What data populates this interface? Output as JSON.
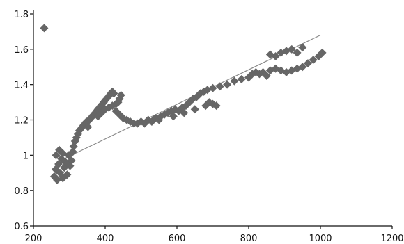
{
  "chart_data": {
    "type": "scatter",
    "title": "",
    "xlabel": "",
    "ylabel": "",
    "xlim": [
      200,
      1200
    ],
    "ylim": [
      0.6,
      1.8
    ],
    "grid": false,
    "legend": "none",
    "x_ticks": [
      200,
      400,
      600,
      800,
      1000,
      1200
    ],
    "x_tick_labels": [
      "200",
      "400",
      "600",
      "800",
      "1000",
      "1200"
    ],
    "y_ticks": [
      0.6,
      0.8,
      1.0,
      1.2,
      1.4,
      1.6,
      1.8
    ],
    "y_tick_labels": [
      "0.6",
      "0.8",
      "1",
      "1.2",
      "1.4",
      "1.6",
      "1.8"
    ],
    "marker_color": "#666666",
    "trendline_color": "#888888",
    "series": [
      {
        "marker": "diamond",
        "points": [
          [
            230,
            1.72
          ],
          [
            258,
            0.88
          ],
          [
            262,
            0.92
          ],
          [
            266,
            0.86
          ],
          [
            270,
            0.95
          ],
          [
            274,
            0.9
          ],
          [
            278,
            0.98
          ],
          [
            282,
            0.87
          ],
          [
            286,
            0.93
          ],
          [
            290,
            0.96
          ],
          [
            294,
            0.89
          ],
          [
            298,
            1.0
          ],
          [
            302,
            0.94
          ],
          [
            306,
            0.97
          ],
          [
            310,
            1.02
          ],
          [
            263,
            1.0
          ],
          [
            272,
            1.03
          ],
          [
            282,
            1.01
          ],
          [
            312,
            1.05
          ],
          [
            316,
            1.08
          ],
          [
            320,
            1.1
          ],
          [
            324,
            1.12
          ],
          [
            328,
            1.14
          ],
          [
            332,
            1.15
          ],
          [
            336,
            1.16
          ],
          [
            340,
            1.17
          ],
          [
            344,
            1.18
          ],
          [
            348,
            1.19
          ],
          [
            352,
            1.16
          ],
          [
            356,
            1.2
          ],
          [
            360,
            1.21
          ],
          [
            364,
            1.22
          ],
          [
            368,
            1.23
          ],
          [
            372,
            1.24
          ],
          [
            376,
            1.25
          ],
          [
            380,
            1.26
          ],
          [
            384,
            1.27
          ],
          [
            388,
            1.28
          ],
          [
            392,
            1.29
          ],
          [
            396,
            1.3
          ],
          [
            400,
            1.31
          ],
          [
            404,
            1.32
          ],
          [
            408,
            1.33
          ],
          [
            412,
            1.34
          ],
          [
            416,
            1.35
          ],
          [
            420,
            1.36
          ],
          [
            424,
            1.35
          ],
          [
            380,
            1.22
          ],
          [
            390,
            1.24
          ],
          [
            400,
            1.26
          ],
          [
            410,
            1.27
          ],
          [
            420,
            1.28
          ],
          [
            430,
            1.29
          ],
          [
            436,
            1.3
          ],
          [
            440,
            1.32
          ],
          [
            444,
            1.34
          ],
          [
            430,
            1.25
          ],
          [
            440,
            1.23
          ],
          [
            450,
            1.21
          ],
          [
            460,
            1.2
          ],
          [
            470,
            1.19
          ],
          [
            480,
            1.18
          ],
          [
            490,
            1.18
          ],
          [
            500,
            1.19
          ],
          [
            510,
            1.18
          ],
          [
            520,
            1.2
          ],
          [
            530,
            1.19
          ],
          [
            540,
            1.21
          ],
          [
            550,
            1.2
          ],
          [
            555,
            1.22
          ],
          [
            565,
            1.23
          ],
          [
            575,
            1.24
          ],
          [
            585,
            1.25
          ],
          [
            595,
            1.26
          ],
          [
            605,
            1.25
          ],
          [
            615,
            1.27
          ],
          [
            625,
            1.28
          ],
          [
            635,
            1.3
          ],
          [
            645,
            1.32
          ],
          [
            655,
            1.33
          ],
          [
            665,
            1.35
          ],
          [
            675,
            1.36
          ],
          [
            685,
            1.37
          ],
          [
            690,
            1.3
          ],
          [
            700,
            1.29
          ],
          [
            710,
            1.28
          ],
          [
            590,
            1.22
          ],
          [
            620,
            1.24
          ],
          [
            650,
            1.26
          ],
          [
            680,
            1.28
          ],
          [
            700,
            1.38
          ],
          [
            720,
            1.39
          ],
          [
            740,
            1.4
          ],
          [
            760,
            1.42
          ],
          [
            780,
            1.43
          ],
          [
            800,
            1.44
          ],
          [
            810,
            1.46
          ],
          [
            820,
            1.47
          ],
          [
            830,
            1.46
          ],
          [
            840,
            1.47
          ],
          [
            850,
            1.45
          ],
          [
            860,
            1.48
          ],
          [
            875,
            1.49
          ],
          [
            890,
            1.48
          ],
          [
            905,
            1.47
          ],
          [
            920,
            1.48
          ],
          [
            935,
            1.49
          ],
          [
            950,
            1.5
          ],
          [
            965,
            1.52
          ],
          [
            980,
            1.54
          ],
          [
            995,
            1.56
          ],
          [
            1005,
            1.58
          ],
          [
            860,
            1.57
          ],
          [
            875,
            1.56
          ],
          [
            890,
            1.58
          ],
          [
            905,
            1.59
          ],
          [
            920,
            1.6
          ],
          [
            935,
            1.58
          ],
          [
            950,
            1.61
          ]
        ]
      }
    ],
    "trendline": [
      [
        265,
        0.96
      ],
      [
        1000,
        1.68
      ]
    ]
  }
}
